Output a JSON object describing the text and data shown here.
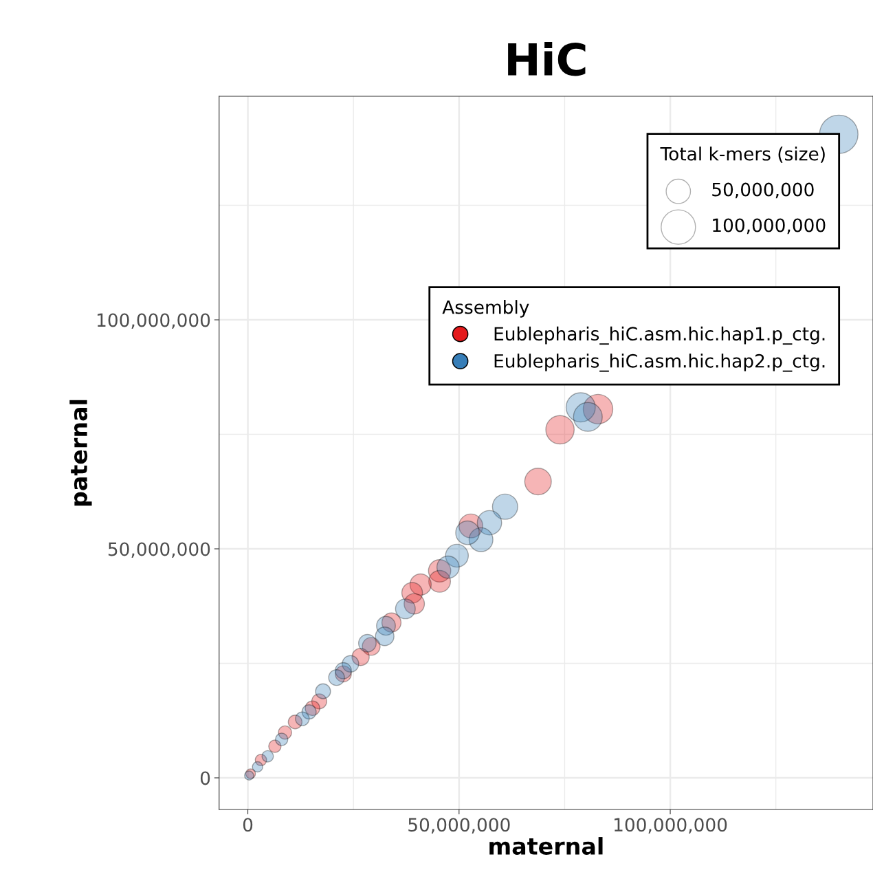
{
  "chart_data": {
    "type": "bubble",
    "title": "HiC",
    "xlabel": "maternal",
    "ylabel": "paternal",
    "legend_title": "Assembly",
    "xlim": [
      -6800000,
      148000000
    ],
    "ylim": [
      -6900000,
      148800000
    ],
    "xticks": [
      {
        "value": 0,
        "label": "0"
      },
      {
        "value": 25000000,
        "label": null
      },
      {
        "value": 50000000,
        "label": "50,000,000"
      },
      {
        "value": 75000000,
        "label": null
      },
      {
        "value": 100000000,
        "label": "100,000,000"
      },
      {
        "value": 125000000,
        "label": null
      }
    ],
    "yticks": [
      {
        "value": 0,
        "label": "0"
      },
      {
        "value": 25000000,
        "label": null
      },
      {
        "value": 50000000,
        "label": "50,000,000"
      },
      {
        "value": 75000000,
        "label": null
      },
      {
        "value": 100000000,
        "label": "100,000,000"
      },
      {
        "value": 125000000,
        "label": null
      }
    ],
    "annotations": [
      "Total k-mers (size)"
    ],
    "size_legend": [
      {
        "value": 50000000,
        "label": "50,000,000"
      },
      {
        "value": 100000000,
        "label": "100,000,000"
      }
    ],
    "grid": true,
    "legend": "top right",
    "marker": "circle",
    "series": [
      {
        "name": "Eublepharis_hiC.asm.hic.hap1.p_ctg.",
        "color": "#e41a1c",
        "x": [
          82900000,
          73900000,
          68700000,
          52800000,
          45400000,
          45400000,
          40900000,
          38900000,
          39400000,
          34000000,
          29200000,
          26700000,
          22600000,
          16900000,
          15300000,
          11200000,
          8800000,
          6400000,
          3100000,
          650000
        ],
        "values": [
          80500000,
          76000000,
          64700000,
          55000000,
          45200000,
          42900000,
          42200000,
          40400000,
          38000000,
          33900000,
          28700000,
          26400000,
          22700000,
          16700000,
          15200000,
          12200000,
          9900000,
          6900000,
          3900000,
          900000
        ],
        "sizes": [
          74000000,
          68000000,
          60000000,
          48000000,
          42000000,
          40000000,
          38000000,
          36000000,
          35000000,
          31000000,
          27000000,
          25000000,
          22000000,
          19000000,
          18000000,
          16000000,
          15000000,
          13000000,
          11000000,
          8000000
        ]
      },
      {
        "name": "Eublepharis_hiC.asm.hic.hap2.p_ctg.",
        "color": "#377eb8",
        "x": [
          139900000,
          78800000,
          80500000,
          60900000,
          57200000,
          55200000,
          52000000,
          49500000,
          47400000,
          37300000,
          32700000,
          32400000,
          28300000,
          24300000,
          22600000,
          21000000,
          17800000,
          14500000,
          12900000,
          8000000,
          4700000,
          2300000,
          300000
        ],
        "values": [
          140500000,
          80900000,
          78800000,
          59200000,
          55700000,
          52000000,
          53500000,
          48500000,
          46000000,
          36900000,
          33200000,
          30900000,
          29400000,
          24900000,
          23400000,
          21900000,
          18900000,
          14400000,
          12900000,
          8400000,
          4700000,
          2400000,
          500000
        ],
        "sizes": [
          125000000,
          72000000,
          70000000,
          54000000,
          50000000,
          48000000,
          47000000,
          44000000,
          42000000,
          33000000,
          30000000,
          29000000,
          26000000,
          23000000,
          22000000,
          21000000,
          19000000,
          17000000,
          16000000,
          13000000,
          11000000,
          9000000,
          7000000
        ]
      }
    ]
  }
}
